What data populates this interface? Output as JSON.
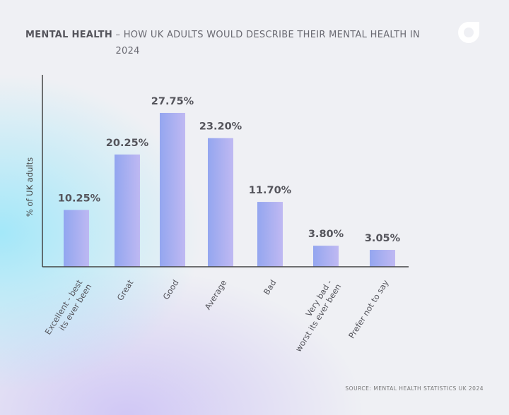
{
  "header": {
    "title_bold": "MENTAL HEALTH",
    "title_rest": "– HOW UK ADULTS WOULD DESCRIBE THEIR MENTAL HEALTH IN 2024"
  },
  "source": "SOURCE: MENTAL HEALTH STATISTICS UK 2024",
  "chart_data": {
    "type": "bar",
    "title": "MENTAL HEALTH – HOW UK ADULTS WOULD DESCRIBE THEIR MENTAL HEALTH IN 2024",
    "xlabel": "",
    "ylabel": "% of UK adults",
    "categories": [
      [
        "Excellent - best",
        "its ever been"
      ],
      [
        "Great"
      ],
      [
        "Good"
      ],
      [
        "Average"
      ],
      [
        "Bad"
      ],
      [
        "Very bad -",
        "worst its ever been"
      ],
      [
        "Prefer not to say"
      ]
    ],
    "values": [
      10.25,
      20.25,
      27.75,
      23.2,
      11.7,
      3.8,
      3.05
    ],
    "data_labels": [
      "10.25%",
      "20.25%",
      "27.75%",
      "23.20%",
      "11.70%",
      "3.80%",
      "3.05%"
    ],
    "ylim": [
      0,
      28
    ],
    "grid": false,
    "colors": {
      "bar_start": "#8fa2ef",
      "bar_end": "#bdb6f2",
      "axis": "#444444",
      "label": "#55555c"
    }
  }
}
